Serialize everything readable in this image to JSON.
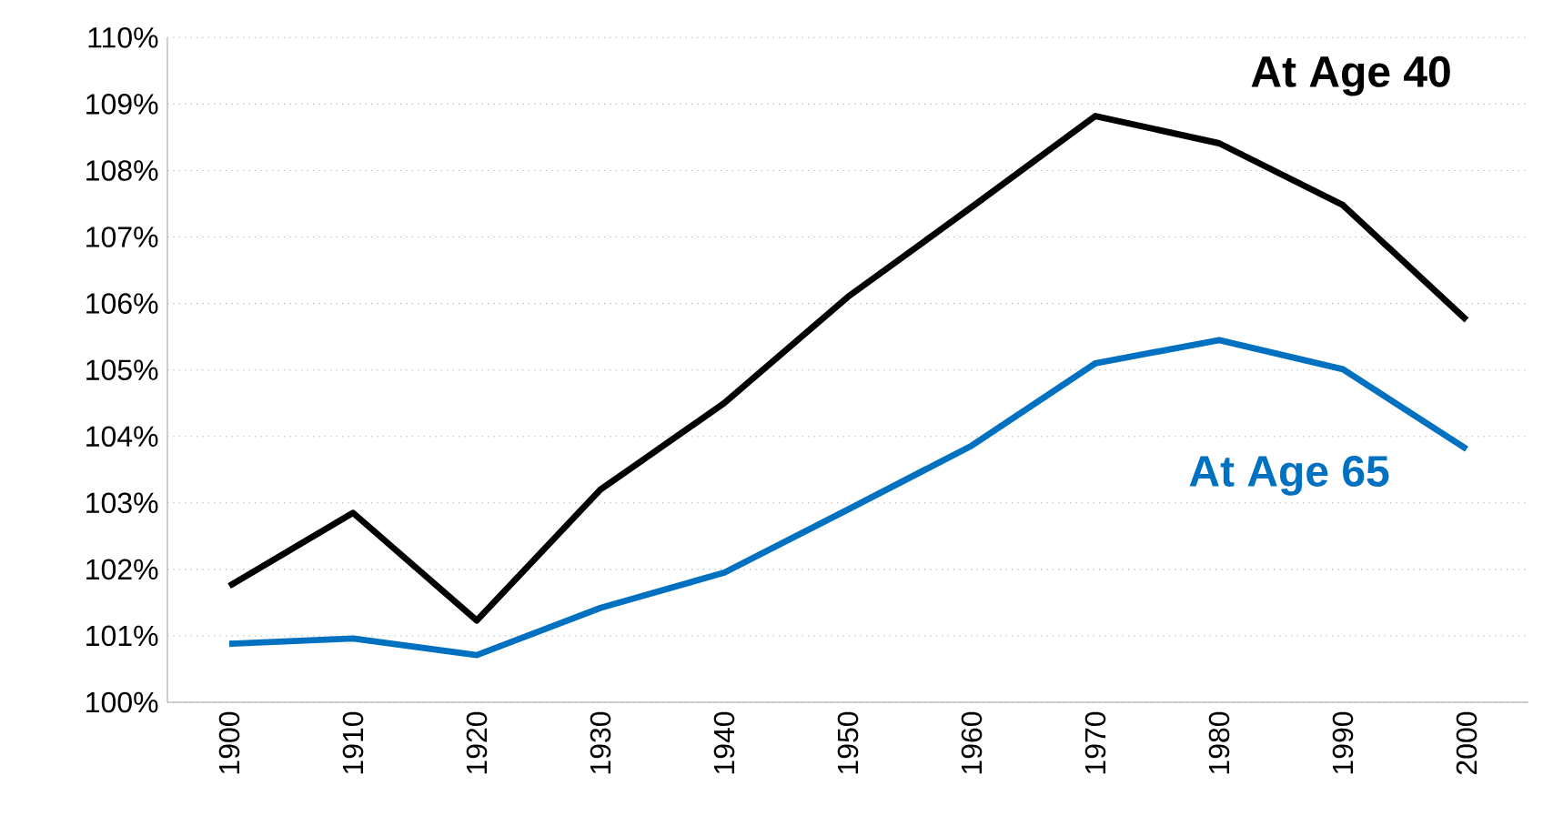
{
  "chart_data": {
    "type": "line",
    "categories": [
      "1900",
      "1910",
      "1920",
      "1930",
      "1940",
      "1950",
      "1960",
      "1970",
      "1980",
      "1990",
      "2000"
    ],
    "series": [
      {
        "name": "At Age 40",
        "color": "#000000",
        "values": [
          101.75,
          102.85,
          101.23,
          103.2,
          104.5,
          106.1,
          107.45,
          108.82,
          108.41,
          107.48,
          105.75
        ]
      },
      {
        "name": "At Age 65",
        "color": "#0070c0",
        "values": [
          100.88,
          100.96,
          100.71,
          101.42,
          101.95,
          102.9,
          103.86,
          105.1,
          105.45,
          105.01,
          103.81
        ]
      }
    ],
    "ylim": [
      100,
      110
    ],
    "yticks": [
      {
        "value": 100,
        "label": "100%"
      },
      {
        "value": 101,
        "label": "101%"
      },
      {
        "value": 102,
        "label": "102%"
      },
      {
        "value": 103,
        "label": "103%"
      },
      {
        "value": 104,
        "label": "104%"
      },
      {
        "value": 105,
        "label": "105%"
      },
      {
        "value": 106,
        "label": "106%"
      },
      {
        "value": 107,
        "label": "107%"
      },
      {
        "value": 108,
        "label": "108%"
      },
      {
        "value": 109,
        "label": "109%"
      },
      {
        "value": 110,
        "label": "110%"
      }
    ],
    "grid": "y",
    "legend": false,
    "marker": "none",
    "line_style": "solid"
  }
}
